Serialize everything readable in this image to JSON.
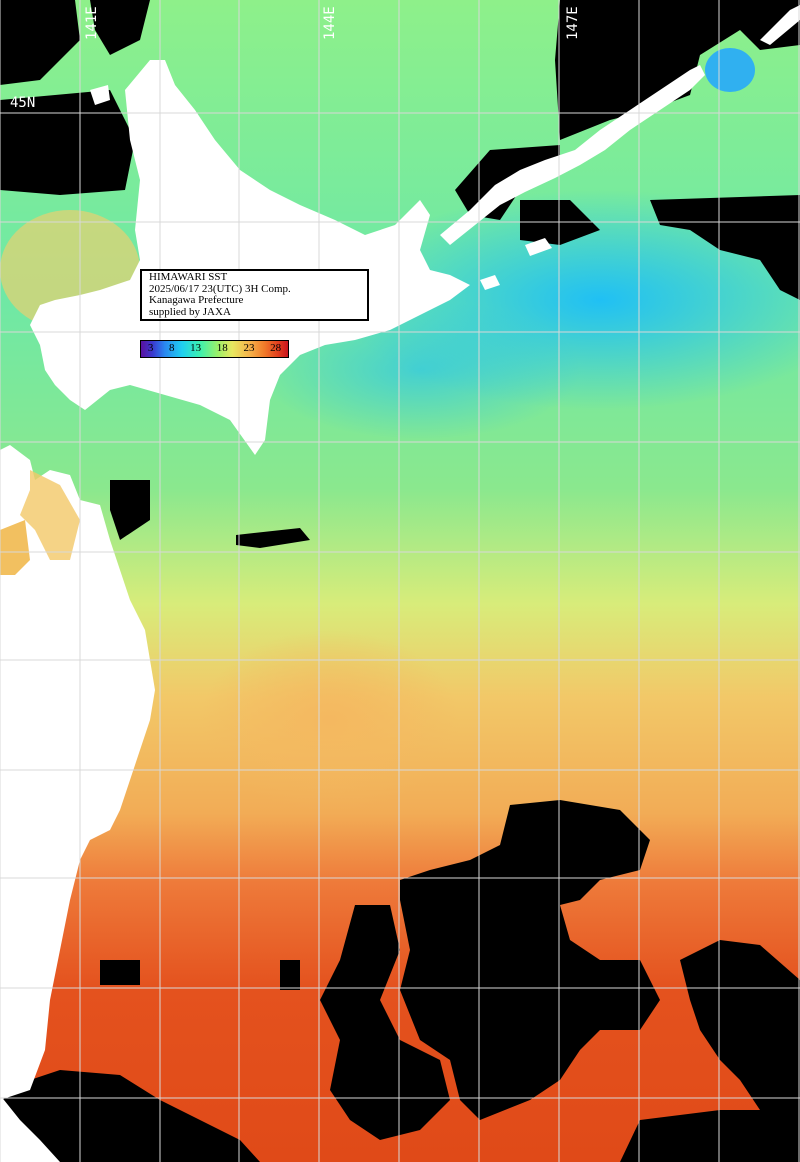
{
  "map": {
    "longitude_labels": [
      "141E",
      "144E",
      "147E"
    ],
    "latitude_labels": [
      "45N"
    ],
    "info_box": {
      "line1": "HIMAWARI SST",
      "line2": "2025/06/17 23(UTC) 3H Comp.",
      "line3": "Kanagawa Prefecture",
      "line4": "supplied by JAXA"
    },
    "colorbar": {
      "ticks": [
        "3",
        "8",
        "13",
        "18",
        "23",
        "28"
      ],
      "unit_range": [
        0,
        30
      ]
    },
    "colors": {
      "land": "#ffffff",
      "no_data": "#000000",
      "gridline": "#d8d8d8",
      "cold": "#30c8f0",
      "cool": "#70e8a0",
      "mild": "#b8ec78",
      "warm": "#f2c060",
      "hot": "#f08a40",
      "very_hot": "#e8501e"
    }
  }
}
